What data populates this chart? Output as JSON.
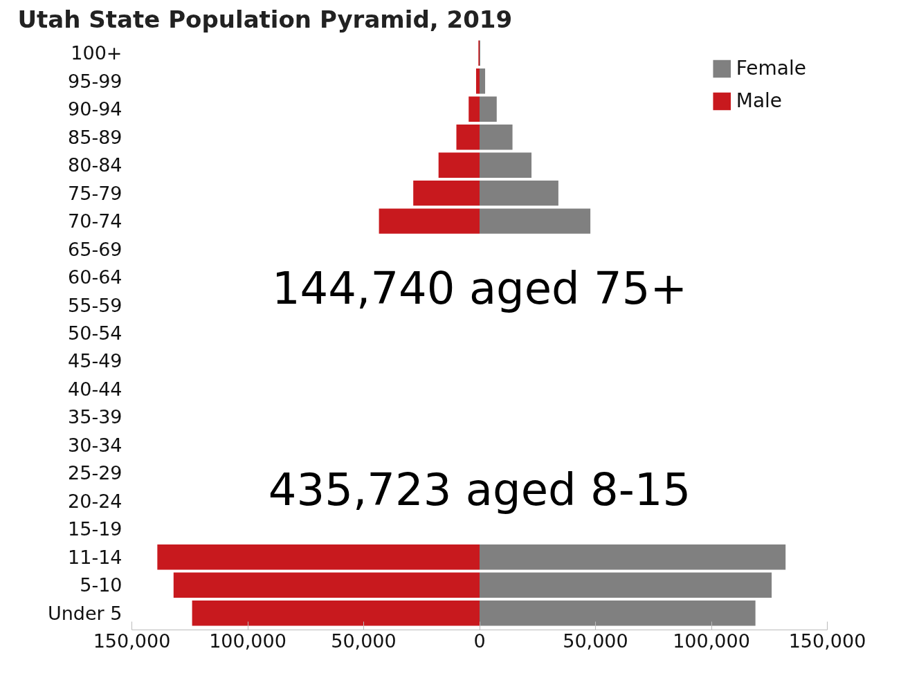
{
  "chart_data": {
    "type": "bar",
    "orientation": "horizontal",
    "title": "Utah State Population Pyramid, 2019",
    "categories": [
      "100+",
      "95-99",
      "90-94",
      "85-89",
      "80-84",
      "75-79",
      "70-74",
      "65-69",
      "60-64",
      "55-59",
      "50-54",
      "45-49",
      "40-44",
      "35-39",
      "30-34",
      "25-29",
      "20-24",
      "15-19",
      "11-14",
      "5-10",
      "Under 5"
    ],
    "series": [
      {
        "name": "Female",
        "color": "#808080",
        "values": [
          300,
          2400,
          7400,
          14200,
          22400,
          34000,
          47800,
          null,
          null,
          null,
          null,
          null,
          null,
          null,
          null,
          null,
          null,
          null,
          132000,
          126000,
          119000
        ]
      },
      {
        "name": "Male",
        "color": "#c8191e",
        "values": [
          -500,
          -1500,
          -4700,
          -10000,
          -17700,
          -28600,
          -43400,
          null,
          null,
          null,
          null,
          null,
          null,
          null,
          null,
          null,
          null,
          null,
          -139000,
          -132000,
          -124000
        ]
      }
    ],
    "xlim": [
      -150000,
      150000
    ],
    "xticks": [
      {
        "value": -150000,
        "label": "150,000"
      },
      {
        "value": -100000,
        "label": "100,000"
      },
      {
        "value": -50000,
        "label": "50,000"
      },
      0,
      {
        "value": 50000,
        "label": "50,000"
      },
      {
        "value": 100000,
        "label": "100,000"
      },
      {
        "value": 150000,
        "label": "150,000"
      }
    ],
    "annotations": [
      "144,740 aged 75+",
      "435,723 aged 8-15"
    ],
    "legend": "top right",
    "grid": false
  }
}
